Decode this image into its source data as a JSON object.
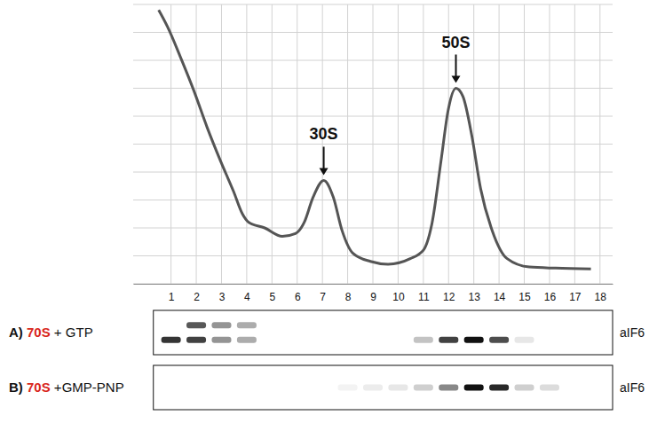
{
  "chart_data": {
    "type": "line",
    "color": "#555555",
    "grid": true,
    "tick_labels": "x",
    "x": [
      0.51,
      0.86,
      1.38,
      1.91,
      2.43,
      2.96,
      3.48,
      3.83,
      4.08,
      4.71,
      5.41,
      5.93,
      6.28,
      6.63,
      7.05,
      7.43,
      7.78,
      8.2,
      8.9,
      9.6,
      10.48,
      11.0,
      11.35,
      11.7,
      11.98,
      12.29,
      12.57,
      12.92,
      13.27,
      13.73,
      14.32,
      15.2,
      16.25,
      17.64
    ],
    "values": [
      0.98,
      0.92,
      0.81,
      0.69,
      0.56,
      0.44,
      0.33,
      0.25,
      0.22,
      0.2,
      0.17,
      0.18,
      0.22,
      0.31,
      0.37,
      0.31,
      0.19,
      0.11,
      0.08,
      0.07,
      0.09,
      0.12,
      0.22,
      0.44,
      0.62,
      0.7,
      0.67,
      0.53,
      0.34,
      0.19,
      0.09,
      0.06,
      0.056,
      0.053
    ],
    "xlim": [
      -0.5,
      18.5
    ],
    "xticks": [
      1,
      2,
      3,
      4,
      5,
      6,
      7,
      8,
      9,
      10,
      11,
      12,
      13,
      14,
      15,
      16,
      17,
      18
    ],
    "ylim": [
      0,
      1
    ],
    "yticks": [
      0,
      0.1,
      0.2,
      0.3,
      0.4,
      0.5,
      0.6,
      0.7,
      0.8,
      0.9,
      1
    ],
    "annotations": [
      {
        "text": "30S",
        "x": 7.05,
        "y": 0.37
      },
      {
        "text": "50S",
        "x": 12.29,
        "y": 0.7
      }
    ],
    "blots": [
      {
        "letter": "A)",
        "ribosome": "70S",
        "color": "#d9261c",
        "ligand": "+ GTP",
        "antibody": "aIF6",
        "bands": [
          [
            0,
            0.7,
            0.45,
            0.35,
            0,
            0,
            0,
            0,
            0,
            0,
            0,
            0,
            0,
            0,
            0,
            0,
            0,
            0
          ],
          [
            0.85,
            0.8,
            0.45,
            0.35,
            0,
            0,
            0,
            0,
            0,
            0,
            0.25,
            0.8,
            1,
            0.75,
            0.1,
            0,
            0,
            0
          ]
        ]
      },
      {
        "letter": "B)",
        "ribosome": "70S",
        "color": "#d9261c",
        "ligand": "+GMP-PNP",
        "antibody": "aIF6",
        "bands": [
          [
            0,
            0,
            0,
            0,
            0,
            0,
            0,
            0.05,
            0.08,
            0.1,
            0.2,
            0.5,
            1,
            0.9,
            0.2,
            0.15,
            0,
            0
          ]
        ]
      }
    ]
  }
}
